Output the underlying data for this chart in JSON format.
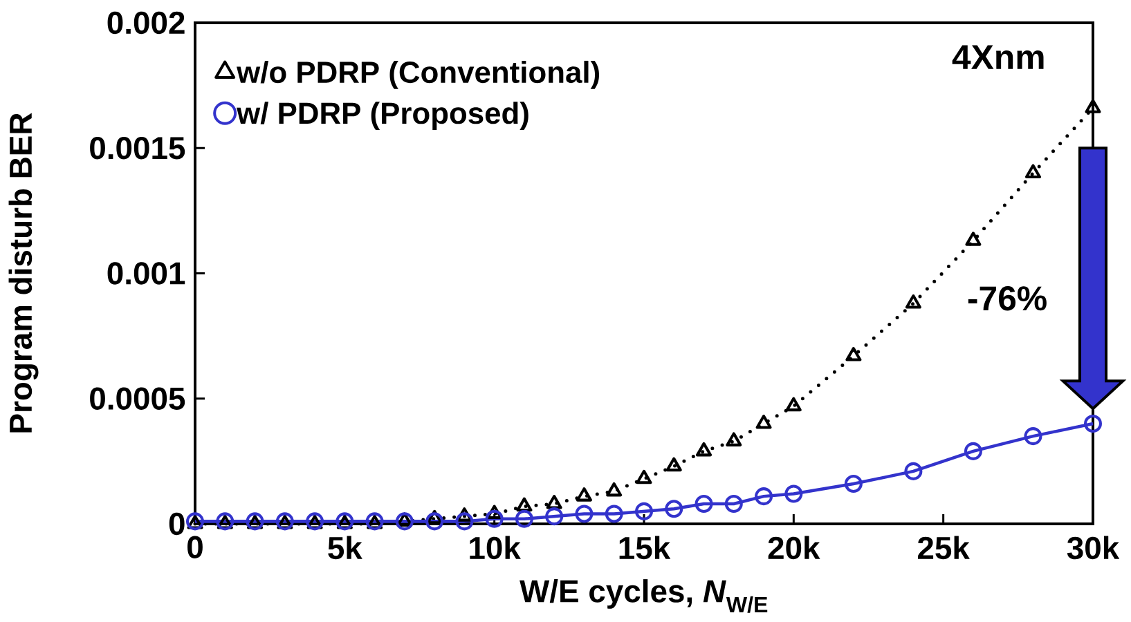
{
  "chart_data": {
    "type": "line",
    "xlabel": "W/E cycles, *N*$_{W/E}$",
    "ylabel": "Program disturb BER",
    "x": [
      0,
      1000,
      2000,
      3000,
      4000,
      5000,
      6000,
      7000,
      8000,
      9000,
      10000,
      11000,
      12000,
      13000,
      14000,
      15000,
      16000,
      17000,
      18000,
      19000,
      20000,
      22000,
      24000,
      26000,
      28000,
      30000
    ],
    "series": [
      {
        "name": "w/o PDRP (Conventional)",
        "color": "#000000",
        "marker": "triangle",
        "line_style": "dotted",
        "values": [
          0,
          0,
          0,
          0,
          0,
          0,
          0,
          1e-05,
          2e-05,
          3e-05,
          4e-05,
          7e-05,
          8e-05,
          0.00011,
          0.00013,
          0.00018,
          0.00023,
          0.00029,
          0.00033,
          0.0004,
          0.00047,
          0.00067,
          0.00088,
          0.00113,
          0.0014,
          0.00166
        ]
      },
      {
        "name": "w/ PDRP (Proposed)",
        "color": "#3333cc",
        "marker": "circle",
        "line_style": "solid",
        "values": [
          1e-05,
          1e-05,
          1e-05,
          1e-05,
          1e-05,
          1e-05,
          1e-05,
          1e-05,
          1e-05,
          1e-05,
          2e-05,
          2e-05,
          3e-05,
          4e-05,
          4e-05,
          5e-05,
          6e-05,
          8e-05,
          8e-05,
          0.00011,
          0.00012,
          0.00016,
          0.00021,
          0.00029,
          0.00035,
          0.0004
        ]
      }
    ],
    "xlim": [
      0,
      30000
    ],
    "xticks": [
      {
        "value": 0,
        "label": "0"
      },
      {
        "value": 5000,
        "label": "5k"
      },
      {
        "value": 10000,
        "label": "10k"
      },
      {
        "value": 15000,
        "label": "15k"
      },
      {
        "value": 20000,
        "label": "20k"
      },
      {
        "value": 25000,
        "label": "25k"
      },
      {
        "value": 30000,
        "label": "30k"
      }
    ],
    "ylim": [
      0,
      0.002
    ],
    "yticks": [
      {
        "value": 0,
        "label": "0"
      },
      {
        "value": 0.0005,
        "label": "0.0005"
      },
      {
        "value": 0.001,
        "label": "0.001"
      },
      {
        "value": 0.0015,
        "label": "0.0015"
      },
      {
        "value": 0.002,
        "label": "0.002"
      }
    ],
    "annotations": [
      "4Xnm",
      "-76%"
    ],
    "legend": "top left",
    "grid": false
  }
}
